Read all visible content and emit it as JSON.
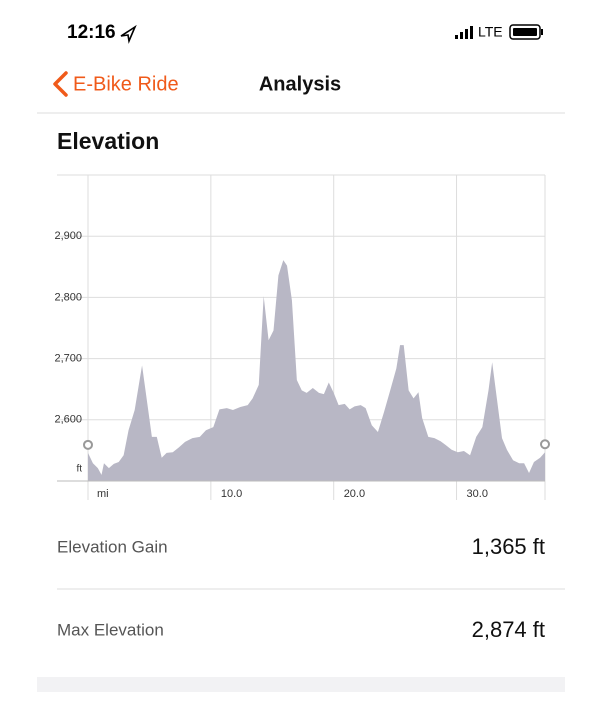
{
  "status_bar": {
    "time": "12:16",
    "network": "LTE"
  },
  "nav": {
    "back": "E-Bike Ride",
    "title": "Analysis"
  },
  "section_title": "Elevation",
  "chart_data": {
    "type": "area",
    "color": "#b8b7c5",
    "x": [
      0.0,
      0.4,
      0.8,
      1.1,
      1.3,
      1.7,
      2.1,
      2.5,
      2.9,
      3.3,
      3.8,
      4.4,
      4.9,
      5.2,
      5.6,
      6.0,
      6.4,
      6.9,
      7.4,
      7.9,
      8.5,
      9.1,
      9.6,
      10.2,
      10.7,
      11.3,
      11.8,
      12.4,
      13.0,
      13.4,
      13.9,
      14.3,
      14.7,
      15.1,
      15.5,
      15.9,
      16.2,
      16.6,
      17.0,
      17.4,
      17.8,
      18.3,
      18.8,
      19.2,
      19.6,
      20.0,
      20.4,
      20.9,
      21.3,
      21.7,
      22.2,
      22.6,
      23.1,
      23.6,
      24.1,
      24.6,
      25.1,
      25.4,
      25.7,
      26.1,
      26.5,
      26.9,
      27.2,
      27.7,
      28.2,
      28.7,
      29.1,
      29.6,
      30.1,
      30.6,
      31.1,
      31.6,
      32.1,
      32.6,
      32.9,
      33.3,
      33.7,
      34.1,
      34.6,
      35.1,
      35.5,
      35.9,
      36.3,
      36.8,
      37.2
    ],
    "values": [
      2546,
      2529,
      2521,
      2510,
      2529,
      2521,
      2528,
      2531,
      2542,
      2583,
      2616,
      2689,
      2616,
      2572,
      2572,
      2538,
      2546,
      2547,
      2555,
      2564,
      2570,
      2572,
      2583,
      2588,
      2617,
      2619,
      2616,
      2621,
      2624,
      2635,
      2657,
      2802,
      2730,
      2746,
      2836,
      2861,
      2852,
      2795,
      2665,
      2648,
      2644,
      2652,
      2644,
      2642,
      2661,
      2644,
      2624,
      2626,
      2617,
      2622,
      2624,
      2619,
      2591,
      2580,
      2613,
      2648,
      2684,
      2722,
      2722,
      2648,
      2635,
      2645,
      2603,
      2572,
      2570,
      2565,
      2559,
      2551,
      2547,
      2549,
      2542,
      2572,
      2588,
      2648,
      2694,
      2632,
      2570,
      2551,
      2534,
      2529,
      2529,
      2513,
      2531,
      2538,
      2547
    ],
    "xlim": [
      0,
      37.2
    ],
    "ylim": [
      2500,
      3000
    ],
    "xticks": [
      {
        "value": 10,
        "label": "10.0"
      },
      {
        "value": 20,
        "label": "20.0"
      },
      {
        "value": 30,
        "label": "30.0"
      }
    ],
    "yticks": [
      {
        "value": 2600,
        "label": "2,600"
      },
      {
        "value": 2700,
        "label": "2,700"
      },
      {
        "value": 2800,
        "label": "2,800"
      },
      {
        "value": 2900,
        "label": "2,900"
      }
    ],
    "x_unit": "mi",
    "y_unit": "ft",
    "grid": true
  },
  "stats": [
    {
      "label": "Elevation Gain",
      "value": "1,365 ft"
    },
    {
      "label": "Max Elevation",
      "value": "2,874 ft"
    }
  ]
}
